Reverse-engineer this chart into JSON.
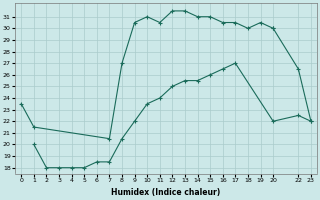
{
  "xlabel": "Humidex (Indice chaleur)",
  "bg_color": "#cce8e8",
  "grid_color": "#aacccc",
  "line_color": "#1a6b5a",
  "ylim": [
    17.5,
    32.2
  ],
  "xlim": [
    -0.5,
    23.5
  ],
  "y_ticks": [
    18,
    19,
    20,
    21,
    22,
    23,
    24,
    25,
    26,
    27,
    28,
    29,
    30,
    31
  ],
  "x_ticks": [
    0,
    1,
    2,
    3,
    4,
    5,
    6,
    7,
    8,
    9,
    10,
    11,
    12,
    13,
    14,
    15,
    16,
    17,
    18,
    19,
    20,
    22,
    23
  ],
  "x_labels": [
    "0",
    "1",
    "2",
    "3",
    "4",
    "5",
    "6",
    "7",
    "8",
    "9",
    "10",
    "11",
    "12",
    "13",
    "14",
    "15",
    "16",
    "17",
    "18",
    "19",
    "20",
    "22",
    "23"
  ],
  "line1_x": [
    0,
    1,
    7,
    8,
    9,
    10,
    11,
    12,
    13,
    14,
    15,
    16,
    17,
    18,
    19,
    20
  ],
  "line1_y": [
    23.5,
    21.5,
    20.5,
    27.0,
    30.5,
    31.0,
    30.5,
    31.5,
    31.5,
    31.0,
    31.0,
    30.5,
    30.5,
    30.0,
    30.5,
    30.0
  ],
  "line2_x": [
    20,
    22,
    23
  ],
  "line2_y": [
    30.0,
    26.5,
    22.0
  ],
  "line3_x": [
    1,
    2,
    3,
    4,
    5,
    6,
    7,
    8,
    9,
    10,
    11,
    12,
    13,
    14,
    15,
    16,
    17,
    20,
    22,
    23
  ],
  "line3_y": [
    20.0,
    18.0,
    18.0,
    18.0,
    18.0,
    18.5,
    18.5,
    20.5,
    22.0,
    23.5,
    24.0,
    25.0,
    25.5,
    25.5,
    26.0,
    26.5,
    27.0,
    22.0,
    22.5,
    22.0
  ]
}
